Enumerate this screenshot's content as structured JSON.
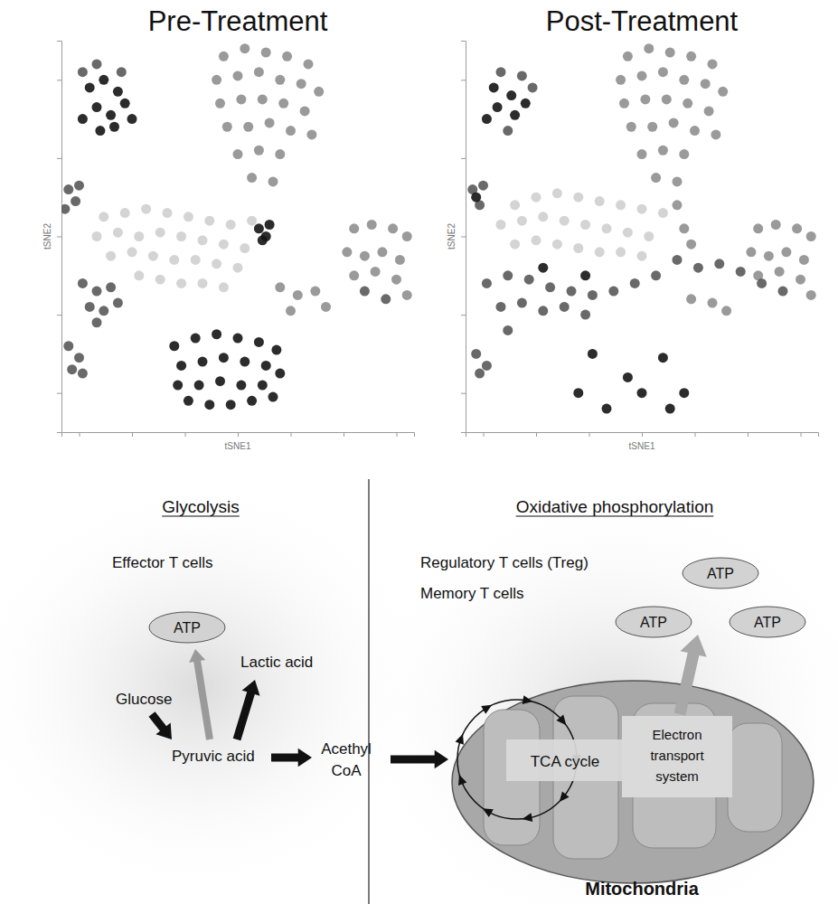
{
  "chart_data": [
    {
      "type": "scatter",
      "title": "Pre-Treatment",
      "x_label": "tSNE1",
      "y_label": "tSNE2",
      "xlim": [
        -50,
        50
      ],
      "ylim": [
        -50,
        50
      ],
      "xticks": [
        -45,
        -30,
        -15,
        0,
        15,
        30,
        45
      ],
      "yticks": [
        -40,
        -20,
        0,
        20,
        40
      ],
      "tick_labels": false,
      "series": [
        {
          "color": "#cfcfcf",
          "x": [
            -38,
            -32,
            -26,
            -20,
            -14,
            -8,
            -2,
            4,
            -40,
            -34,
            -28,
            -22,
            -16,
            -10,
            -4,
            2,
            -36,
            -30,
            -24,
            -18,
            -12,
            -6,
            0,
            -28,
            -22,
            -16,
            -10,
            -4
          ],
          "values": [
            5,
            6,
            7,
            6,
            5,
            4,
            3,
            4,
            0,
            1,
            0,
            1,
            0,
            -1,
            -2,
            -3,
            -5,
            -4,
            -5,
            -6,
            -6,
            -7,
            -8,
            -10,
            -11,
            -12,
            -12,
            -13
          ]
        },
        {
          "color": "#8f8f8f",
          "x": [
            -4,
            2,
            8,
            14,
            20,
            -6,
            0,
            6,
            12,
            18,
            23,
            -5,
            1,
            7,
            13,
            19,
            -3,
            3,
            9,
            15,
            21,
            0,
            6,
            12,
            4,
            10,
            33,
            38,
            44,
            48,
            31,
            36,
            41,
            46,
            33,
            39,
            45,
            48,
            12,
            17,
            22,
            25,
            15
          ],
          "values": [
            46,
            48,
            47,
            46,
            44,
            40,
            41,
            42,
            40,
            39,
            37,
            34,
            35,
            35,
            34,
            32,
            28,
            28,
            29,
            27,
            26,
            21,
            22,
            21,
            15,
            14,
            2,
            3,
            2,
            0,
            -4,
            -5,
            -4,
            -6,
            -10,
            -9,
            -11,
            -15,
            -13,
            -15,
            -14,
            -18,
            -19
          ]
        },
        {
          "color": "#595959",
          "x": [
            -44,
            -40,
            -33,
            -48,
            -46,
            -49,
            -45,
            -44,
            -40,
            -36,
            -42,
            -38,
            -34,
            -40,
            -48,
            -45,
            -47,
            -44,
            36,
            42
          ],
          "values": [
            42,
            44,
            42,
            12,
            9,
            7,
            13,
            -12,
            -14,
            -13,
            -18,
            -19,
            -17,
            -22,
            -28,
            -31,
            -34,
            -35,
            -14,
            -16
          ]
        },
        {
          "color": "#151515",
          "x": [
            -42,
            -38,
            -34,
            -40,
            -36,
            -32,
            -44,
            -39,
            -35,
            -30,
            6,
            8,
            9,
            7,
            -18,
            -12,
            -6,
            0,
            6,
            11,
            -16,
            -10,
            -4,
            2,
            8,
            12,
            -17,
            -11,
            -5,
            1,
            7,
            -14,
            -8,
            -2,
            4,
            10
          ],
          "values": [
            38,
            40,
            37,
            33,
            31,
            34,
            30,
            27,
            28,
            30,
            2,
            0,
            3,
            -1,
            -28,
            -26,
            -25,
            -26,
            -27,
            -29,
            -33,
            -32,
            -31,
            -32,
            -33,
            -35,
            -38,
            -38,
            -37,
            -38,
            -38,
            -42,
            -43,
            -43,
            -42,
            -41
          ]
        }
      ]
    },
    {
      "type": "scatter",
      "title": "Post-Treatment",
      "x_label": "tSNE1",
      "y_label": "tSNE2",
      "xlim": [
        -50,
        50
      ],
      "ylim": [
        -50,
        50
      ],
      "xticks": [
        -45,
        -30,
        -15,
        0,
        15,
        30,
        45
      ],
      "yticks": [
        -40,
        -20,
        0,
        20,
        40
      ],
      "tick_labels": false,
      "series": [
        {
          "color": "#cfcfcf",
          "x": [
            -36,
            -30,
            -24,
            -18,
            -12,
            -6,
            0,
            6,
            -40,
            -34,
            -28,
            -22,
            -16,
            -10,
            -4,
            2,
            -36,
            -30,
            -24,
            -18,
            -12,
            -6,
            0
          ],
          "values": [
            8,
            10,
            11,
            10,
            9,
            8,
            7,
            6,
            3,
            4,
            5,
            4,
            3,
            2,
            1,
            0,
            -2,
            -1,
            -2,
            -3,
            -4,
            -4,
            -5
          ]
        },
        {
          "color": "#8f8f8f",
          "x": [
            -4,
            2,
            8,
            14,
            20,
            -6,
            0,
            6,
            12,
            18,
            23,
            -5,
            1,
            7,
            13,
            19,
            -3,
            3,
            9,
            15,
            21,
            0,
            6,
            12,
            4,
            10,
            10,
            12,
            14,
            33,
            38,
            44,
            48,
            31,
            36,
            41,
            46,
            33,
            39,
            45,
            48,
            14,
            20,
            24
          ],
          "values": [
            46,
            48,
            47,
            46,
            44,
            40,
            41,
            42,
            40,
            39,
            37,
            34,
            35,
            35,
            34,
            32,
            28,
            28,
            29,
            27,
            26,
            21,
            22,
            21,
            15,
            14,
            8,
            2,
            -2,
            2,
            3,
            2,
            0,
            -4,
            -5,
            -4,
            -6,
            -10,
            -9,
            -11,
            -15,
            -16,
            -17,
            -19
          ]
        },
        {
          "color": "#595959",
          "x": [
            -40,
            -34,
            -31,
            -38,
            -48,
            -46,
            -45,
            -44,
            -38,
            -32,
            -26,
            -20,
            -14,
            -8,
            -2,
            4,
            -40,
            -34,
            -28,
            -22,
            -16,
            -38,
            -47,
            -44,
            -46,
            10,
            16,
            22,
            28,
            34,
            40
          ],
          "values": [
            42,
            41,
            38,
            27,
            12,
            8,
            13,
            -12,
            -10,
            -11,
            -13,
            -14,
            -15,
            -14,
            -12,
            -10,
            -18,
            -17,
            -19,
            -18,
            -20,
            -24,
            -30,
            -33,
            -35,
            -6,
            -8,
            -7,
            -9,
            -12,
            -14
          ]
        },
        {
          "color": "#151515",
          "x": [
            -42,
            -37,
            -41,
            -36,
            -44,
            -33,
            -47,
            -14,
            -4,
            6,
            12,
            -10,
            0,
            8,
            -18,
            -28,
            -16
          ],
          "values": [
            38,
            36,
            33,
            31,
            30,
            34,
            10,
            -30,
            -36,
            -31,
            -40,
            -44,
            -40,
            -44,
            -40,
            -8,
            -10
          ]
        }
      ]
    }
  ],
  "diagram": {
    "left": {
      "title": "Glycolysis",
      "cells": "Effector T cells",
      "atp": "ATP",
      "lactic": "Lactic acid",
      "glucose": "Glucose",
      "pyruvic": "Pyruvic acid"
    },
    "middle": {
      "label_lines": [
        "Acethyl",
        "CoA"
      ]
    },
    "right": {
      "title": "Oxidative phosphorylation",
      "cells": [
        "Regulatory T cells (Treg)",
        "Memory T cells"
      ],
      "atp": [
        "ATP",
        "ATP",
        "ATP"
      ],
      "tca": "TCA cycle",
      "ets_lines": [
        "Electron",
        "transport",
        "system"
      ],
      "organelle": "Mitochondria"
    }
  }
}
